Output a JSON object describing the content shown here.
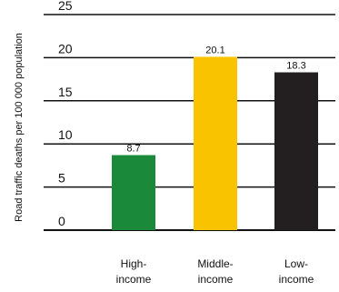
{
  "chart_data": {
    "type": "bar",
    "categories": [
      [
        "High-",
        "income"
      ],
      [
        "Middle-",
        "income"
      ],
      [
        "Low-",
        "income"
      ]
    ],
    "values": [
      8.7,
      20.1,
      18.3
    ],
    "value_labels": [
      "8.7",
      "20.1",
      "18.3"
    ],
    "colors": [
      "#1a8a3a",
      "#f9c300",
      "#231f20"
    ],
    "ylabel": "Road traffic deaths per 100 000 population",
    "ylim": [
      0,
      25
    ],
    "yticks": [
      0,
      5,
      10,
      15,
      20,
      25
    ],
    "grid": true
  }
}
